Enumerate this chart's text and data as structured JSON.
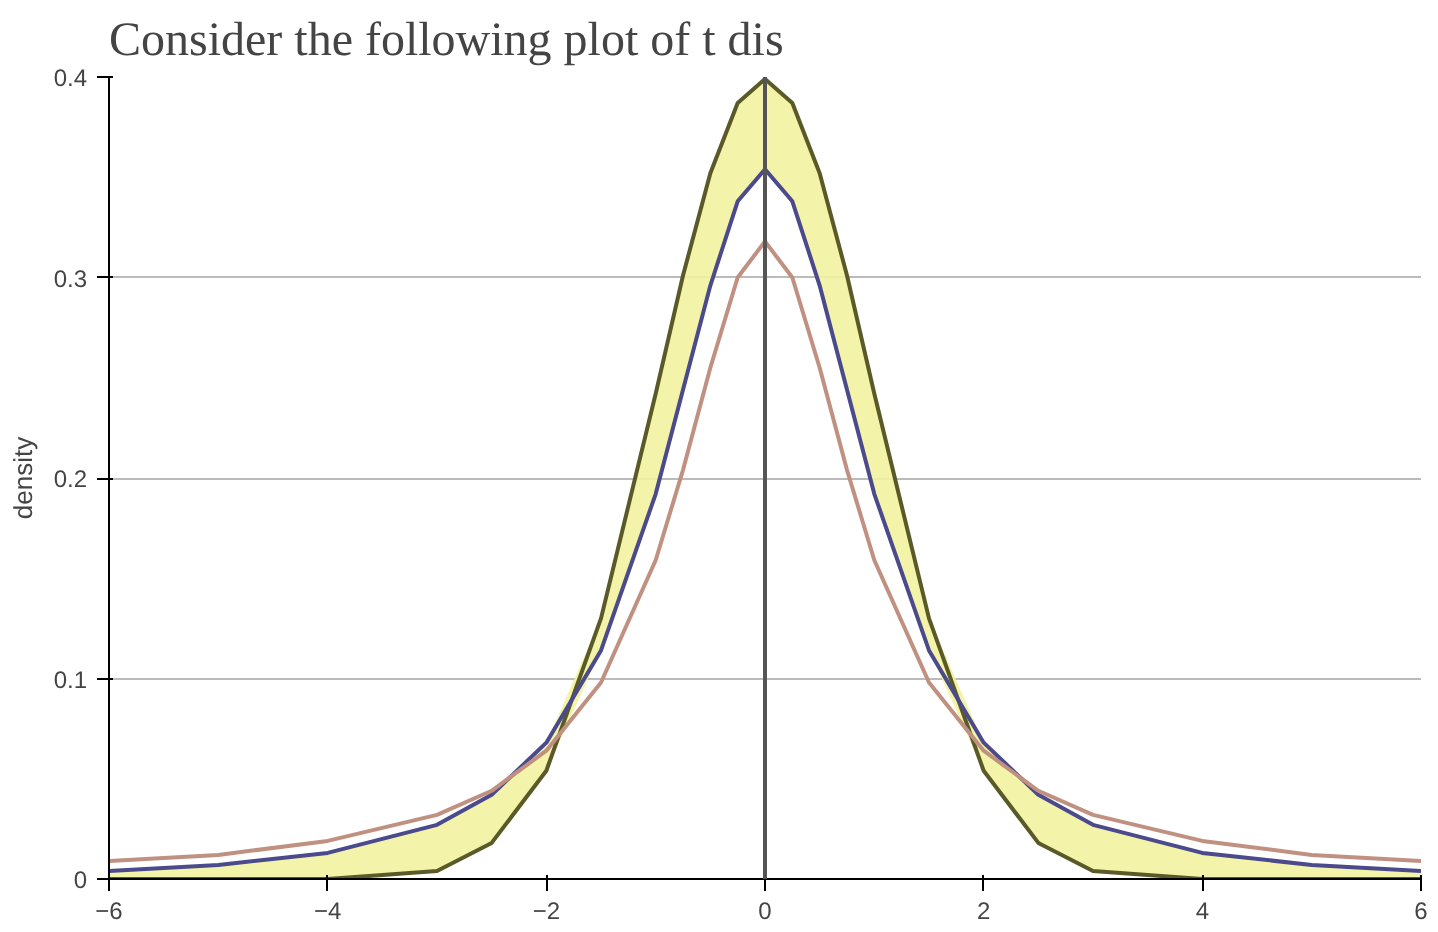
{
  "chart_data": {
    "type": "line",
    "title": "Consider the following plot of t dis",
    "ylabel": "density",
    "x": [
      -6,
      -5,
      -4,
      -3,
      -2.5,
      -2,
      -1.5,
      -1,
      -0.75,
      -0.5,
      -0.25,
      0,
      0.25,
      0.5,
      0.75,
      1,
      1.5,
      2,
      2.5,
      3,
      4,
      5,
      6
    ],
    "series": [
      {
        "color": "#5a5a28",
        "values": [
          0.0,
          0.0,
          0.0,
          0.004,
          0.018,
          0.054,
          0.13,
          0.242,
          0.301,
          0.352,
          0.387,
          0.399,
          0.387,
          0.352,
          0.301,
          0.242,
          0.13,
          0.054,
          0.018,
          0.004,
          0.0,
          0.0,
          0.0
        ],
        "lower": [
          0.0,
          0.0,
          0.0,
          0.004,
          0.018,
          0.054,
          0.114,
          0.192,
          0.244,
          0.296,
          0.338,
          0.354,
          0.338,
          0.296,
          0.244,
          0.192,
          0.114,
          0.054,
          0.018,
          0.004,
          0.0,
          0.0,
          0.0
        ],
        "upper": [
          0.004,
          0.007,
          0.013,
          0.027,
          0.042,
          0.068,
          0.13,
          0.242,
          0.301,
          0.352,
          0.387,
          0.399,
          0.387,
          0.352,
          0.301,
          0.242,
          0.13,
          0.068,
          0.042,
          0.027,
          0.013,
          0.007,
          0.004
        ]
      },
      {
        "color": "#4a4a8c",
        "values": [
          0.004,
          0.007,
          0.013,
          0.027,
          0.042,
          0.068,
          0.114,
          0.192,
          0.244,
          0.296,
          0.338,
          0.354,
          0.338,
          0.296,
          0.244,
          0.192,
          0.114,
          0.068,
          0.042,
          0.027,
          0.013,
          0.007,
          0.004
        ]
      },
      {
        "color": "#c09080",
        "values": [
          0.009,
          0.012,
          0.019,
          0.032,
          0.044,
          0.064,
          0.098,
          0.159,
          0.204,
          0.255,
          0.3,
          0.318,
          0.3,
          0.255,
          0.204,
          0.159,
          0.098,
          0.064,
          0.044,
          0.032,
          0.019,
          0.012,
          0.009
        ]
      }
    ],
    "xlim": [
      -6,
      6
    ],
    "xticks": [
      -6,
      -4,
      -2,
      0,
      2,
      4,
      6
    ],
    "ylim": [
      0,
      0.4
    ],
    "yticks": [
      0,
      0.1,
      0.2,
      0.3,
      0.4
    ],
    "grid": "y",
    "ref_lines": [
      {
        "axis": "x",
        "value": 0,
        "color": "#555555"
      }
    ]
  }
}
